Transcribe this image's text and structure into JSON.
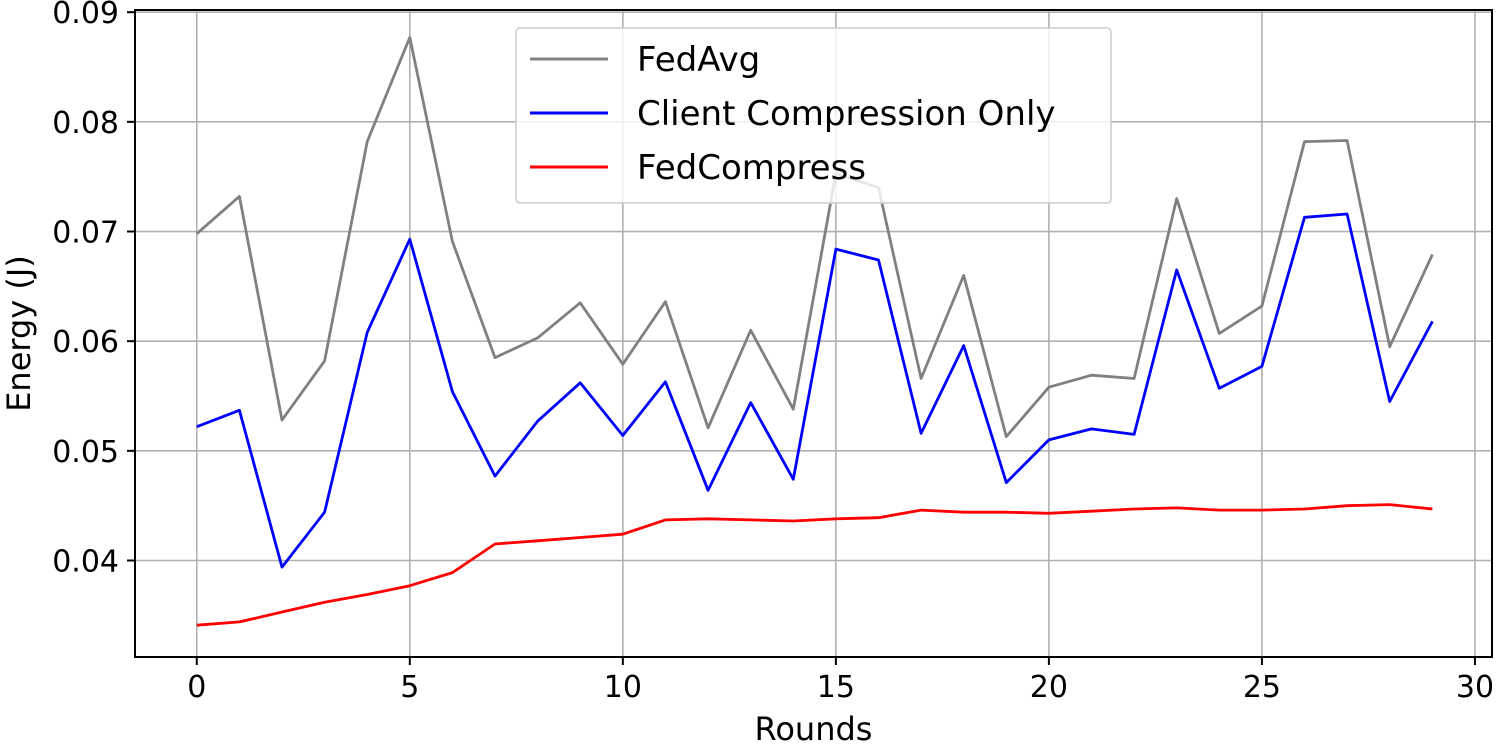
{
  "chart_data": {
    "type": "line",
    "xlabel": "Rounds",
    "ylabel": "Energy (J)",
    "xlim": [
      -1.45,
      30.4
    ],
    "ylim": [
      0.0312,
      0.0902
    ],
    "xticks": [
      0,
      5,
      10,
      15,
      20,
      25,
      30
    ],
    "xtick_labels": [
      "0",
      "5",
      "10",
      "15",
      "20",
      "25",
      "30"
    ],
    "yticks": [
      0.04,
      0.05,
      0.06,
      0.07,
      0.08,
      0.09
    ],
    "ytick_labels": [
      "0.04",
      "0.05",
      "0.06",
      "0.07",
      "0.08",
      "0.09"
    ],
    "grid": true,
    "legend_position": "top-center",
    "x": [
      0,
      1,
      2,
      3,
      4,
      5,
      6,
      7,
      8,
      9,
      10,
      11,
      12,
      13,
      14,
      15,
      16,
      17,
      18,
      19,
      20,
      21,
      22,
      23,
      24,
      25,
      26,
      27,
      28,
      29
    ],
    "series": [
      {
        "name": "FedAvg",
        "color": "#808080",
        "values": [
          0.0698,
          0.0732,
          0.0528,
          0.0582,
          0.0782,
          0.0877,
          0.0691,
          0.0585,
          0.0603,
          0.0635,
          0.0579,
          0.0636,
          0.0521,
          0.061,
          0.0538,
          0.0753,
          0.074,
          0.0566,
          0.066,
          0.0513,
          0.0558,
          0.0569,
          0.0566,
          0.073,
          0.0607,
          0.0632,
          0.0782,
          0.0783,
          0.0595,
          0.0679
        ]
      },
      {
        "name": "Client Compression Only",
        "color": "#0000ff",
        "values": [
          0.0522,
          0.0537,
          0.0394,
          0.0444,
          0.0608,
          0.0693,
          0.0554,
          0.0477,
          0.0527,
          0.0562,
          0.0514,
          0.0563,
          0.0464,
          0.0544,
          0.0474,
          0.0684,
          0.0674,
          0.0516,
          0.0596,
          0.0471,
          0.051,
          0.052,
          0.0515,
          0.0665,
          0.0557,
          0.0577,
          0.0713,
          0.0716,
          0.0545,
          0.0618
        ]
      },
      {
        "name": "FedCompress",
        "color": "#ff0000",
        "values": [
          0.0341,
          0.0344,
          0.0353,
          0.0362,
          0.0369,
          0.0377,
          0.0389,
          0.0415,
          0.0418,
          0.0421,
          0.0424,
          0.0437,
          0.0438,
          0.0437,
          0.0436,
          0.0438,
          0.0439,
          0.0446,
          0.0444,
          0.0444,
          0.0443,
          0.0445,
          0.0447,
          0.0448,
          0.0446,
          0.0446,
          0.0447,
          0.045,
          0.0451,
          0.0447
        ]
      }
    ]
  }
}
